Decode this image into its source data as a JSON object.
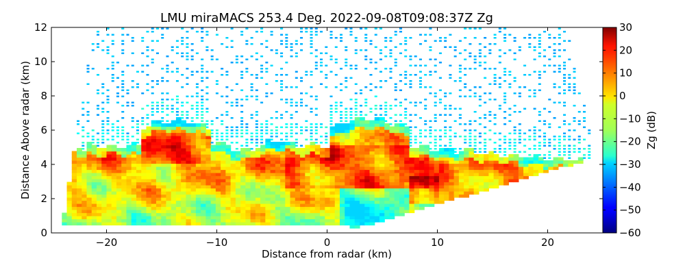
{
  "chart_data": {
    "type": "heatmap",
    "title": "LMU miraMACS 253.4 Deg. 2022-09-08T09:08:37Z  Zg",
    "xlabel": "Distance from radar (km)",
    "ylabel": "Distance Above radar  (km)",
    "xlim": [
      -25,
      25
    ],
    "ylim": [
      0,
      12
    ],
    "x_ticks": [
      -20,
      -10,
      0,
      10,
      20
    ],
    "x_tick_labels": [
      "−20",
      "−10",
      "0",
      "10",
      "20"
    ],
    "y_ticks": [
      0,
      2,
      4,
      6,
      8,
      10,
      12
    ],
    "y_tick_labels": [
      "0",
      "2",
      "4",
      "6",
      "8",
      "10",
      "12"
    ],
    "grid": false,
    "colorbar": {
      "label": "Zg (dB)",
      "range": [
        -60,
        30
      ],
      "ticks": [
        -60,
        -50,
        -40,
        -30,
        -20,
        -10,
        0,
        10,
        20,
        30
      ],
      "tick_labels": [
        "−60",
        "−50",
        "−40",
        "−30",
        "−20",
        "−10",
        "0",
        "10",
        "20",
        "30"
      ],
      "colormap": "jet"
    },
    "scan_range_km": 24.5,
    "features": [
      {
        "name": "cloud layer",
        "x_range": [
          -24,
          24
        ],
        "y_range": [
          0.3,
          6.5
        ],
        "value_range": [
          -25,
          25
        ]
      },
      {
        "name": "strong echo core",
        "x_range": [
          7,
          10
        ],
        "y_range": [
          2,
          3
        ],
        "value_range": [
          20,
          28
        ]
      },
      {
        "name": "clear-air noise",
        "x_range": [
          -22,
          22
        ],
        "y_range": [
          5,
          12
        ],
        "value_range": [
          -35,
          -28
        ]
      }
    ]
  }
}
